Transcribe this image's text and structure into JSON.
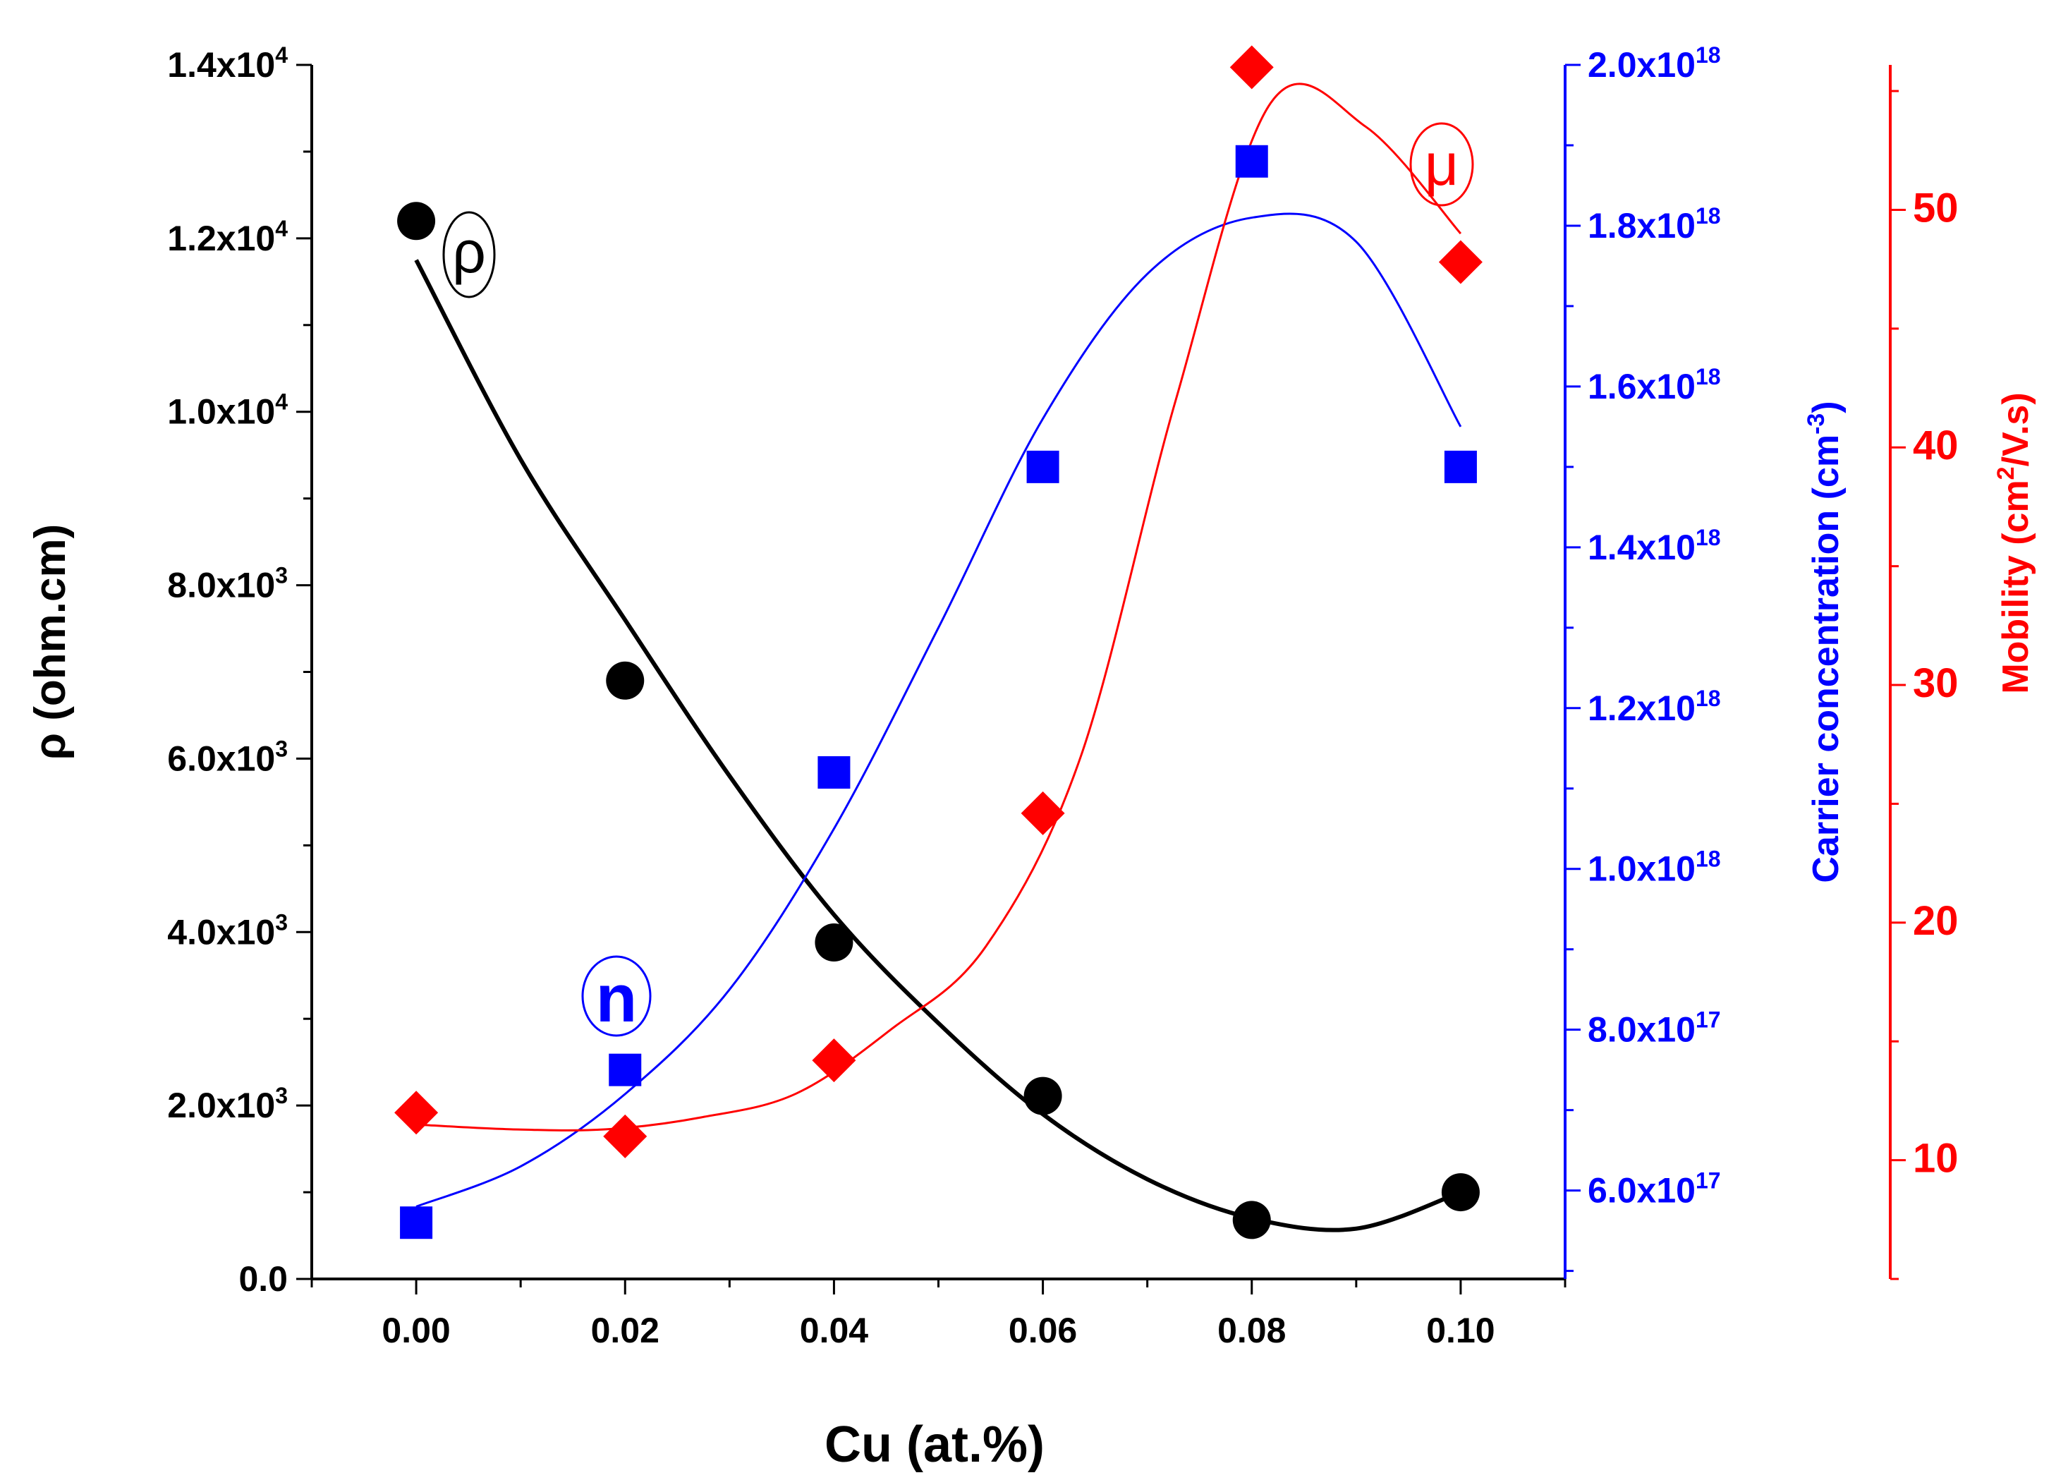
{
  "chart_data": {
    "type": "scatter",
    "x": [
      0.0,
      0.02,
      0.04,
      0.06,
      0.08,
      0.1
    ],
    "xlabel": "Cu (at.%)",
    "xlim": [
      -0.01,
      0.11
    ],
    "x_tick_labels": [
      "0.00",
      "0.02",
      "0.04",
      "0.06",
      "0.08",
      "0.10"
    ],
    "x_ticks": [
      0.0,
      0.02,
      0.04,
      0.06,
      0.08,
      0.1
    ],
    "series": [
      {
        "name": "resistivity",
        "annotation": "ρ",
        "marker": "circle",
        "color": "#000000",
        "axis": "left",
        "values": [
          12200,
          6900,
          3880,
          2110,
          680,
          1000
        ],
        "fit": [
          11750,
          9450,
          7600,
          5800,
          4200,
          2950,
          1900,
          1150,
          700,
          580,
          1000
        ]
      },
      {
        "name": "carrier concentration",
        "annotation": "n",
        "marker": "square",
        "color": "#0000ff",
        "axis": "right1",
        "values": [
          5.6e+17,
          7.5e+17,
          1.12e+18,
          1.5e+18,
          1.88e+18,
          1.5e+18
        ],
        "fit": [
          5.8e+17,
          6.3e+17,
          7.2e+17,
          8.5e+17,
          1.05e+18,
          1.3e+18,
          1.56e+18,
          1.74e+18,
          1.81e+18,
          1.78e+18,
          1.55e+18
        ]
      },
      {
        "name": "mobility",
        "annotation": "μ",
        "marker": "diamond",
        "color": "#ff0000",
        "axis": "right2",
        "values": [
          12.0,
          11.0,
          14.2,
          24.6,
          56.0,
          47.8
        ],
        "fit": [
          11.5,
          11.3,
          11.3,
          11.8,
          12.8,
          15.5,
          19.0,
          27.0,
          42.0,
          54.5,
          53.5,
          49.0
        ]
      }
    ],
    "y_left": {
      "label": "ρ (ohm.cm)",
      "lim": [
        0,
        14000
      ],
      "ticks": [
        0,
        2000,
        4000,
        6000,
        8000,
        10000,
        12000,
        14000
      ],
      "tick_labels": [
        {
          "m": "0.0",
          "e": ""
        },
        {
          "m": "2.0x10",
          "e": "3"
        },
        {
          "m": "4.0x10",
          "e": "3"
        },
        {
          "m": "6.0x10",
          "e": "3"
        },
        {
          "m": "8.0x10",
          "e": "3"
        },
        {
          "m": "1.0x10",
          "e": "4"
        },
        {
          "m": "1.2x10",
          "e": "4"
        },
        {
          "m": "1.4x10",
          "e": "4"
        }
      ]
    },
    "y_right1": {
      "label": "Carrier concentration (cm",
      "label_sup": "-3",
      "label_end": ")",
      "lim": [
        4.9e+17,
        2e+18
      ],
      "ticks": [
        6e+17,
        8e+17,
        1e+18,
        1.2e+18,
        1.4e+18,
        1.6e+18,
        1.8e+18,
        2e+18
      ],
      "tick_labels": [
        {
          "m": "6.0x10",
          "e": "17"
        },
        {
          "m": "8.0x10",
          "e": "17"
        },
        {
          "m": "1.0x10",
          "e": "18"
        },
        {
          "m": "1.2x10",
          "e": "18"
        },
        {
          "m": "1.4x10",
          "e": "18"
        },
        {
          "m": "1.6x10",
          "e": "18"
        },
        {
          "m": "1.8x10",
          "e": "18"
        },
        {
          "m": "2.0x10",
          "e": "18"
        }
      ]
    },
    "y_right2": {
      "label": "Mobility (cm",
      "label_sup": "2",
      "label_end": "/V.s)",
      "lim": [
        5,
        56.1
      ],
      "ticks": [
        10,
        20,
        30,
        40,
        50
      ],
      "tick_labels": [
        "10",
        "20",
        "30",
        "40",
        "50"
      ]
    }
  }
}
